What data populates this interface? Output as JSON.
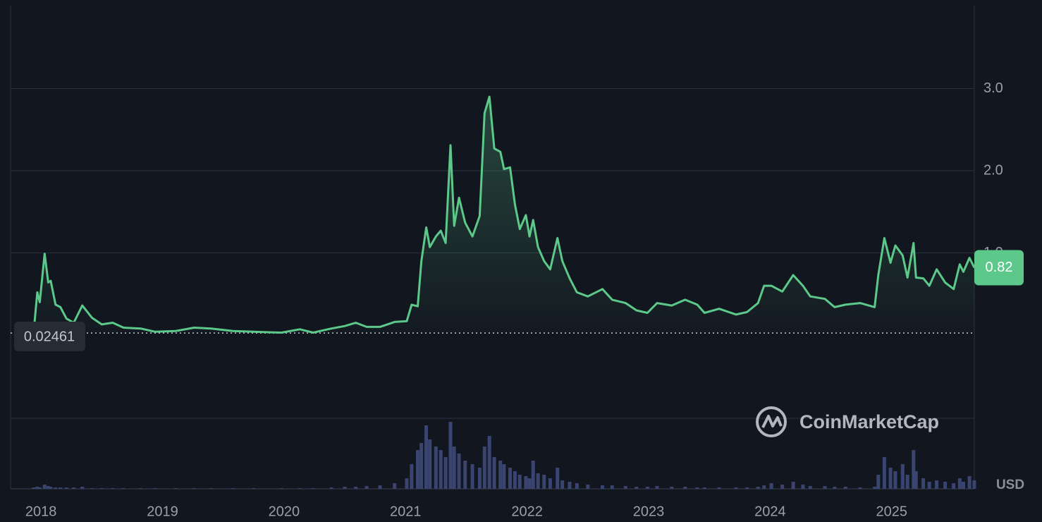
{
  "chart_data": {
    "type": "line",
    "x": [
      2017.94,
      2017.97,
      2017.99,
      2018.03,
      2018.06,
      2018.08,
      2018.12,
      2018.16,
      2018.21,
      2018.27,
      2018.34,
      2018.42,
      2018.5,
      2018.59,
      2018.68,
      2018.82,
      2018.94,
      2019.11,
      2019.26,
      2019.4,
      2019.58,
      2019.75,
      2019.98,
      2020.13,
      2020.24,
      2020.39,
      2020.5,
      2020.59,
      2020.68,
      2020.79,
      2020.91,
      2021.01,
      2021.05,
      2021.1,
      2021.13,
      2021.17,
      2021.2,
      2021.25,
      2021.29,
      2021.33,
      2021.37,
      2021.4,
      2021.44,
      2021.49,
      2021.55,
      2021.61,
      2021.65,
      2021.69,
      2021.73,
      2021.78,
      2021.81,
      2021.86,
      2021.9,
      2021.94,
      2021.99,
      2022.02,
      2022.05,
      2022.09,
      2022.14,
      2022.19,
      2022.25,
      2022.29,
      2022.35,
      2022.41,
      2022.5,
      2022.62,
      2022.7,
      2022.81,
      2022.9,
      2022.99,
      2023.07,
      2023.19,
      2023.3,
      2023.4,
      2023.46,
      2023.58,
      2023.72,
      2023.81,
      2023.9,
      2023.95,
      2024.01,
      2024.1,
      2024.19,
      2024.27,
      2024.33,
      2024.45,
      2024.53,
      2024.62,
      2024.74,
      2024.86,
      2024.89,
      2024.94,
      2024.99,
      2025.03,
      2025.09,
      2025.13,
      2025.18,
      2025.2,
      2025.26,
      2025.31,
      2025.37,
      2025.44,
      2025.51,
      2025.56,
      2025.59,
      2025.64,
      2025.68
    ],
    "series": [
      {
        "color": "#5cc98a",
        "values": [
          0.04,
          0.52,
          0.4,
          0.99,
          0.64,
          0.66,
          0.37,
          0.34,
          0.2,
          0.15,
          0.36,
          0.21,
          0.13,
          0.15,
          0.09,
          0.08,
          0.04,
          0.05,
          0.09,
          0.08,
          0.05,
          0.04,
          0.03,
          0.07,
          0.03,
          0.08,
          0.11,
          0.15,
          0.1,
          0.1,
          0.16,
          0.17,
          0.37,
          0.35,
          0.9,
          1.31,
          1.07,
          1.2,
          1.27,
          1.12,
          2.31,
          1.33,
          1.67,
          1.37,
          1.2,
          1.45,
          2.7,
          2.9,
          2.27,
          2.23,
          2.02,
          2.04,
          1.59,
          1.29,
          1.46,
          1.2,
          1.4,
          1.07,
          0.9,
          0.8,
          1.18,
          0.9,
          0.69,
          0.52,
          0.47,
          0.56,
          0.43,
          0.39,
          0.3,
          0.27,
          0.39,
          0.36,
          0.43,
          0.37,
          0.27,
          0.32,
          0.25,
          0.28,
          0.39,
          0.6,
          0.6,
          0.53,
          0.73,
          0.6,
          0.47,
          0.44,
          0.34,
          0.37,
          0.39,
          0.34,
          0.73,
          1.18,
          0.88,
          1.09,
          0.97,
          0.7,
          1.12,
          0.7,
          0.69,
          0.6,
          0.8,
          0.64,
          0.56,
          0.86,
          0.77,
          0.94,
          0.82
        ]
      }
    ],
    "volume": {
      "color": "#3a4470",
      "values": [
        2,
        3,
        2,
        6,
        4,
        3,
        2,
        2,
        2,
        2,
        3,
        1,
        1,
        1,
        1,
        1,
        1,
        1,
        1,
        1,
        1,
        1,
        1,
        1,
        1,
        2,
        3,
        3,
        4,
        5,
        8,
        15,
        35,
        55,
        65,
        90,
        70,
        60,
        55,
        45,
        95,
        60,
        50,
        40,
        35,
        30,
        60,
        75,
        45,
        40,
        35,
        30,
        25,
        20,
        18,
        15,
        40,
        22,
        20,
        15,
        30,
        12,
        10,
        8,
        6,
        5,
        5,
        4,
        3,
        3,
        4,
        3,
        3,
        2,
        2,
        2,
        2,
        2,
        3,
        5,
        8,
        6,
        10,
        6,
        4,
        4,
        3,
        3,
        2,
        3,
        20,
        45,
        30,
        25,
        35,
        20,
        55,
        25,
        15,
        10,
        12,
        10,
        8,
        15,
        10,
        18,
        12
      ]
    },
    "baseline": 0.02461,
    "xlim": [
      2017.75,
      2025.68
    ],
    "xticks": [
      2018,
      2019,
      2020,
      2021,
      2022,
      2023,
      2024,
      2025
    ],
    "ylim": [
      -1.0,
      4.0
    ],
    "yticks": [
      {
        "value": 1.0,
        "label": "1.0"
      },
      {
        "value": 2.0,
        "label": "2.0"
      },
      {
        "value": 3.0,
        "label": "3.0"
      }
    ],
    "grid": true,
    "currency": "USD",
    "watermark": "CoinMarketCap"
  }
}
